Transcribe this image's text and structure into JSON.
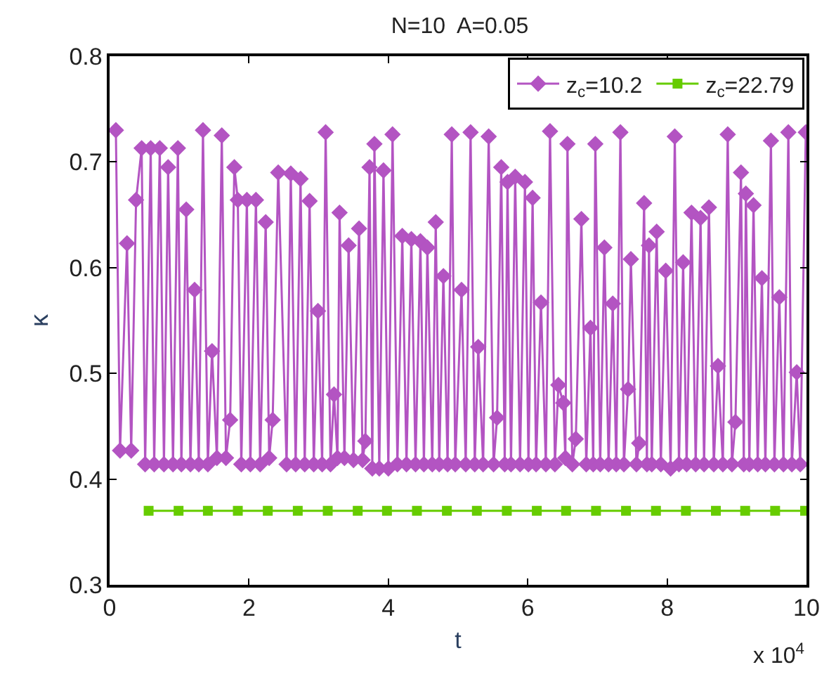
{
  "chart_data": {
    "type": "line",
    "title": "N=10  A=0.05",
    "xlabel": "t",
    "ylabel": "κ",
    "annotations": [
      "x 10$^{4}$"
    ],
    "xlim": [
      0,
      10
    ],
    "xticks": [
      0,
      2,
      4,
      6,
      8,
      10
    ],
    "ylim": [
      0.3,
      0.8
    ],
    "yticks": [
      0.3,
      0.4,
      0.5,
      0.6,
      0.7,
      0.8
    ],
    "legend": "top right",
    "series": [
      {
        "name": "z$_{c}$=10.2",
        "color": "#b354c2",
        "marker": "diamond",
        "x": [
          0.09,
          0.15,
          0.25,
          0.31,
          0.38,
          0.46,
          0.51,
          0.59,
          0.64,
          0.72,
          0.78,
          0.84,
          0.91,
          0.98,
          1.03,
          1.1,
          1.16,
          1.22,
          1.28,
          1.34,
          1.41,
          1.47,
          1.54,
          1.61,
          1.67,
          1.73,
          1.79,
          1.84,
          1.89,
          1.97,
          2.02,
          2.1,
          2.16,
          2.24,
          2.29,
          2.34,
          2.42,
          2.54,
          2.6,
          2.67,
          2.74,
          2.8,
          2.87,
          2.93,
          2.99,
          3.05,
          3.1,
          3.17,
          3.22,
          3.27,
          3.3,
          3.37,
          3.43,
          3.5,
          3.58,
          3.63,
          3.67,
          3.73,
          3.77,
          3.8,
          3.87,
          3.93,
          4.0,
          4.06,
          4.13,
          4.2,
          4.26,
          4.33,
          4.39,
          4.46,
          4.51,
          4.56,
          4.63,
          4.68,
          4.73,
          4.79,
          4.85,
          4.91,
          4.96,
          5.05,
          5.11,
          5.18,
          5.24,
          5.29,
          5.36,
          5.44,
          5.51,
          5.56,
          5.62,
          5.67,
          5.71,
          5.76,
          5.82,
          5.89,
          5.96,
          6.01,
          6.07,
          6.12,
          6.19,
          6.26,
          6.32,
          6.39,
          6.44,
          6.51,
          6.54,
          6.57,
          6.64,
          6.69,
          6.77,
          6.84,
          6.9,
          6.94,
          6.97,
          7.04,
          7.1,
          7.16,
          7.22,
          7.27,
          7.33,
          7.38,
          7.44,
          7.48,
          7.56,
          7.6,
          7.67,
          7.71,
          7.74,
          7.78,
          7.85,
          7.91,
          7.98,
          8.05,
          8.11,
          8.17,
          8.23,
          8.28,
          8.35,
          8.41,
          8.48,
          8.53,
          8.6,
          8.67,
          8.73,
          8.8,
          8.87,
          8.93,
          8.98,
          9.06,
          9.1,
          9.13,
          9.18,
          9.24,
          9.3,
          9.36,
          9.41,
          9.49,
          9.54,
          9.61,
          9.67,
          9.74,
          9.79,
          9.86,
          9.91,
          9.99
        ],
        "values": [
          0.73,
          0.427,
          0.623,
          0.427,
          0.664,
          0.713,
          0.414,
          0.713,
          0.414,
          0.713,
          0.414,
          0.695,
          0.414,
          0.713,
          0.414,
          0.655,
          0.414,
          0.579,
          0.414,
          0.73,
          0.414,
          0.521,
          0.42,
          0.725,
          0.42,
          0.456,
          0.695,
          0.664,
          0.414,
          0.664,
          0.414,
          0.664,
          0.414,
          0.643,
          0.42,
          0.456,
          0.69,
          0.414,
          0.689,
          0.414,
          0.684,
          0.414,
          0.663,
          0.414,
          0.559,
          0.414,
          0.728,
          0.414,
          0.48,
          0.42,
          0.652,
          0.42,
          0.621,
          0.418,
          0.637,
          0.418,
          0.436,
          0.695,
          0.41,
          0.717,
          0.41,
          0.692,
          0.41,
          0.726,
          0.414,
          0.63,
          0.414,
          0.627,
          0.414,
          0.625,
          0.414,
          0.619,
          0.414,
          0.643,
          0.414,
          0.592,
          0.414,
          0.726,
          0.414,
          0.579,
          0.414,
          0.728,
          0.414,
          0.525,
          0.414,
          0.724,
          0.414,
          0.458,
          0.695,
          0.414,
          0.681,
          0.414,
          0.686,
          0.414,
          0.681,
          0.414,
          0.666,
          0.414,
          0.567,
          0.414,
          0.729,
          0.414,
          0.489,
          0.472,
          0.42,
          0.717,
          0.414,
          0.438,
          0.646,
          0.414,
          0.543,
          0.414,
          0.717,
          0.414,
          0.619,
          0.414,
          0.566,
          0.414,
          0.728,
          0.414,
          0.485,
          0.608,
          0.414,
          0.434,
          0.661,
          0.414,
          0.621,
          0.414,
          0.634,
          0.414,
          0.597,
          0.41,
          0.724,
          0.414,
          0.605,
          0.414,
          0.652,
          0.414,
          0.647,
          0.414,
          0.657,
          0.414,
          0.507,
          0.414,
          0.726,
          0.414,
          0.454,
          0.69,
          0.414,
          0.67,
          0.414,
          0.659,
          0.414,
          0.59,
          0.414,
          0.72,
          0.414,
          0.572,
          0.414,
          0.728,
          0.414,
          0.501,
          0.414,
          0.728
        ]
      },
      {
        "name": "z$_{c}$=22.79",
        "color": "#66cc00",
        "marker": "square",
        "x": [
          0.56,
          0.99,
          1.41,
          1.84,
          2.27,
          2.7,
          3.13,
          3.56,
          3.98,
          4.41,
          4.84,
          5.27,
          5.7,
          6.13,
          6.55,
          6.98,
          7.41,
          7.84,
          8.27,
          8.7,
          9.12,
          9.55,
          9.98
        ],
        "values": [
          0.37,
          0.37,
          0.37,
          0.37,
          0.37,
          0.37,
          0.37,
          0.37,
          0.37,
          0.37,
          0.37,
          0.37,
          0.37,
          0.37,
          0.37,
          0.37,
          0.37,
          0.37,
          0.37,
          0.37,
          0.37,
          0.37,
          0.37
        ]
      }
    ]
  }
}
